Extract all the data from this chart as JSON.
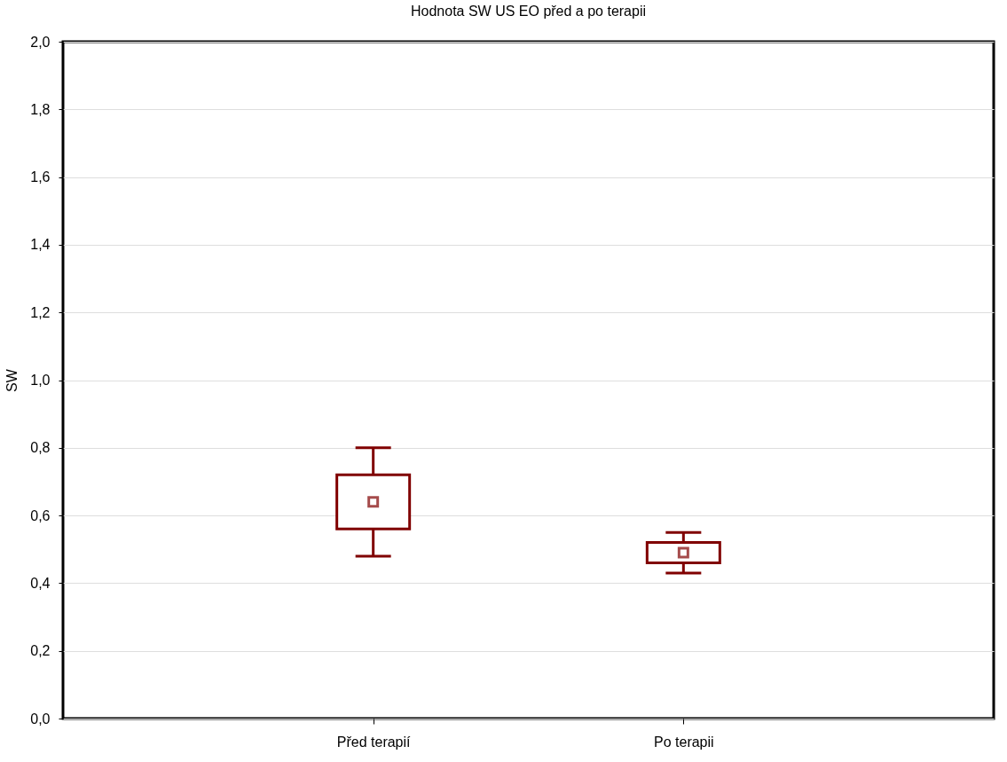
{
  "chart_data": {
    "type": "box",
    "title": "Hodnota SW US EO před a po terapii",
    "ylabel": "SW",
    "categories": [
      "Před terapií",
      "Po terapii"
    ],
    "boxes": [
      {
        "low": 0.48,
        "q1": 0.56,
        "median": 0.64,
        "q3": 0.72,
        "high": 0.8
      },
      {
        "low": 0.43,
        "q1": 0.46,
        "median": 0.49,
        "q3": 0.52,
        "high": 0.55
      }
    ],
    "color": "#800000",
    "marker": "square",
    "ylim": [
      0,
      2
    ],
    "yticks": [
      {
        "value": 0,
        "label": "0,0"
      },
      {
        "value": 0.2,
        "label": "0,2"
      },
      {
        "value": 0.4,
        "label": "0,4"
      },
      {
        "value": 0.6,
        "label": "0,6"
      },
      {
        "value": 0.8,
        "label": "0,8"
      },
      {
        "value": 1.0,
        "label": "1,0"
      },
      {
        "value": 1.2,
        "label": "1,2"
      },
      {
        "value": 1.4,
        "label": "1,4"
      },
      {
        "value": 1.6,
        "label": "1,6"
      },
      {
        "value": 1.8,
        "label": "1,8"
      },
      {
        "value": 2.0,
        "label": "2,0"
      }
    ],
    "grid": "y"
  }
}
